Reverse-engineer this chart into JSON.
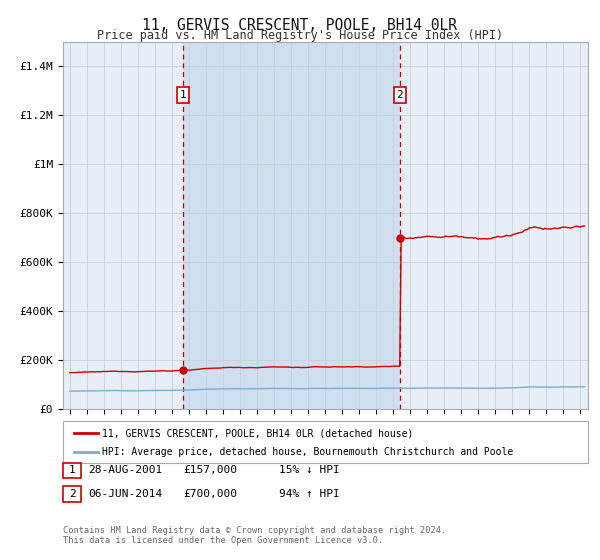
{
  "title": "11, GERVIS CRESCENT, POOLE, BH14 0LR",
  "subtitle": "Price paid vs. HM Land Registry's House Price Index (HPI)",
  "legend_line1": "11, GERVIS CRESCENT, POOLE, BH14 0LR (detached house)",
  "legend_line2": "HPI: Average price, detached house, Bournemouth Christchurch and Poole",
  "annotation1_date": "28-AUG-2001",
  "annotation1_price": "£157,000",
  "annotation1_hpi": "15% ↓ HPI",
  "annotation2_date": "06-JUN-2014",
  "annotation2_price": "£700,000",
  "annotation2_hpi": "94% ↑ HPI",
  "footer1": "Contains HM Land Registry data © Crown copyright and database right 2024.",
  "footer2": "This data is licensed under the Open Government Licence v3.0.",
  "red_color": "#cc0000",
  "blue_color": "#7aadcf",
  "background_color": "#ffffff",
  "plot_bg_color": "#e8eef5",
  "shade_color": "#d0dff0",
  "grid_color": "#c8d0d8",
  "sale1_year": 2001.66,
  "sale1_price": 157000,
  "sale2_year": 2014.43,
  "sale2_price": 700000,
  "ymax": 1500000,
  "yticks": [
    0,
    200000,
    400000,
    600000,
    800000,
    1000000,
    1200000,
    1400000
  ],
  "ytick_labels": [
    "£0",
    "£200K",
    "£400K",
    "£600K",
    "£800K",
    "£1M",
    "£1.2M",
    "£1.4M"
  ],
  "xmin": 1994.6,
  "xmax": 2025.5
}
